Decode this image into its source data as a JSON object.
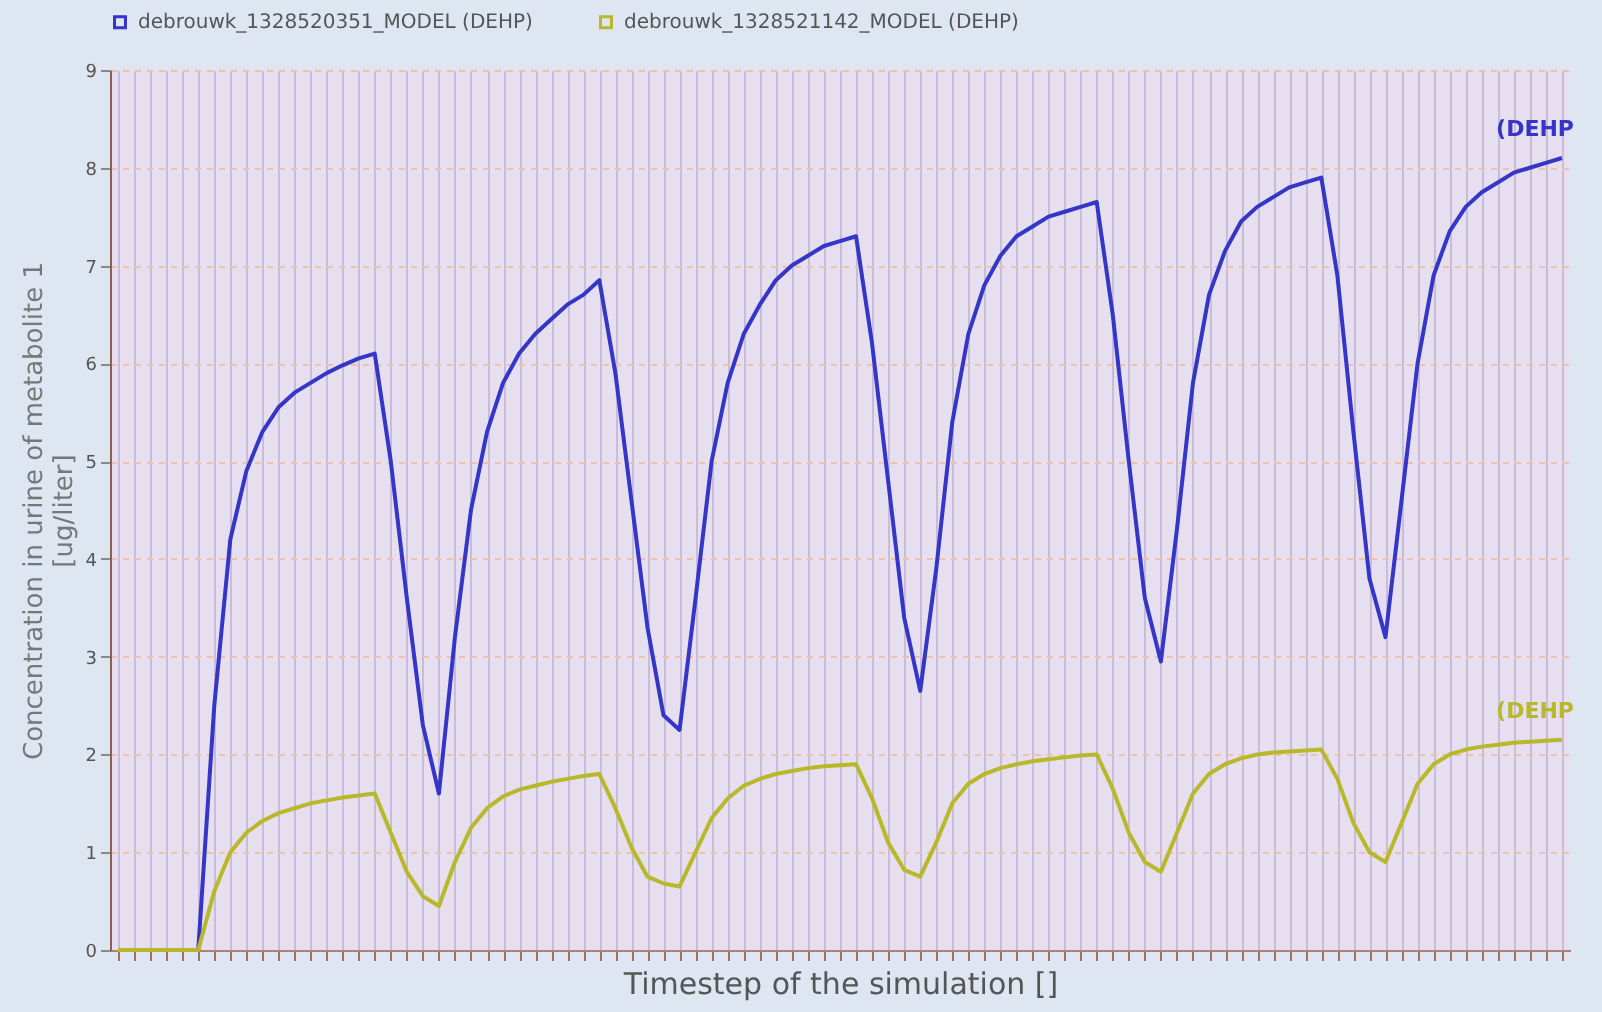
{
  "chart_data": {
    "type": "line",
    "categories": [
      null,
      null,
      null,
      null,
      null,
      null,
      null,
      null,
      null,
      null,
      null,
      null,
      null,
      null,
      null,
      null,
      null,
      null,
      null,
      null,
      null,
      null,
      null,
      null,
      null,
      null,
      null,
      null,
      null,
      null,
      null,
      null,
      null,
      null,
      null,
      null,
      null,
      null,
      null,
      null,
      null,
      null,
      null,
      null,
      null,
      null,
      null,
      null,
      null,
      null,
      null,
      null,
      null,
      null,
      null,
      null,
      null,
      null,
      null,
      null,
      null,
      null,
      null,
      null,
      null,
      null,
      null,
      null,
      null,
      null,
      null,
      null,
      null,
      null,
      null,
      null,
      null,
      null,
      null,
      null,
      null,
      null,
      null,
      null,
      null,
      null,
      null,
      null,
      null,
      null,
      null
    ],
    "series": [
      {
        "name": "debrouwk_1328520351_MODEL (DEHP)",
        "color": "#3535c8",
        "values": [
          null,
          null,
          null,
          null,
          null,
          0,
          2.5,
          4.2,
          4.9,
          5.3,
          5.55,
          5.7,
          5.8,
          5.9,
          5.98,
          6.05,
          6.1,
          5.0,
          3.6,
          2.3,
          1.6,
          3.2,
          4.5,
          5.3,
          5.8,
          6.1,
          6.3,
          6.45,
          6.6,
          6.7,
          6.85,
          5.9,
          4.6,
          3.3,
          2.4,
          2.25,
          3.6,
          5.0,
          5.8,
          6.3,
          6.6,
          6.85,
          7.0,
          7.1,
          7.2,
          7.25,
          7.3,
          6.2,
          4.8,
          3.4,
          2.65,
          3.9,
          5.4,
          6.3,
          6.8,
          7.1,
          7.3,
          7.4,
          7.5,
          7.55,
          7.6,
          7.65,
          6.5,
          5.0,
          3.6,
          2.95,
          4.3,
          5.8,
          6.7,
          7.15,
          7.45,
          7.6,
          7.7,
          7.8,
          7.85,
          7.9,
          6.9,
          5.3,
          3.8,
          3.2,
          4.6,
          6.0,
          6.9,
          7.35,
          7.6,
          7.75,
          7.85,
          7.95,
          8.0,
          8.05,
          8.1
        ]
      },
      {
        "name": "debrouwk_1328521142_MODEL (DEHP)",
        "color": "#b8b82a",
        "values": [
          0,
          0,
          0,
          0,
          0,
          0,
          0.6,
          1.0,
          1.2,
          1.32,
          1.4,
          1.45,
          1.5,
          1.53,
          1.56,
          1.58,
          1.6,
          1.2,
          0.8,
          0.55,
          0.45,
          0.9,
          1.25,
          1.45,
          1.57,
          1.64,
          1.68,
          1.72,
          1.75,
          1.78,
          1.8,
          1.45,
          1.05,
          0.75,
          0.68,
          0.65,
          1.0,
          1.35,
          1.55,
          1.68,
          1.75,
          1.8,
          1.83,
          1.86,
          1.88,
          1.89,
          1.9,
          1.55,
          1.1,
          0.82,
          0.75,
          1.1,
          1.5,
          1.7,
          1.8,
          1.86,
          1.9,
          1.93,
          1.95,
          1.97,
          1.99,
          2.0,
          1.65,
          1.2,
          0.9,
          0.8,
          1.2,
          1.6,
          1.8,
          1.9,
          1.96,
          2.0,
          2.02,
          2.03,
          2.04,
          2.05,
          1.75,
          1.3,
          1.0,
          0.9,
          1.3,
          1.7,
          1.9,
          2.0,
          2.05,
          2.08,
          2.1,
          2.12,
          2.13,
          2.14,
          2.15
        ]
      }
    ],
    "annotations": [
      "(DEHP",
      "(DEHP"
    ],
    "xlabel": "Timestep of the simulation []",
    "ylabel": "Concentration in urine of metabolite 1\n[ug/liter]",
    "ylim": [
      0,
      9
    ],
    "yticks": [
      0,
      1,
      2,
      3,
      4,
      5,
      6,
      7,
      8,
      9
    ],
    "grid": true,
    "legend": "top left",
    "tick_labels": "y",
    "line_style": "solid",
    "marker": "none"
  }
}
